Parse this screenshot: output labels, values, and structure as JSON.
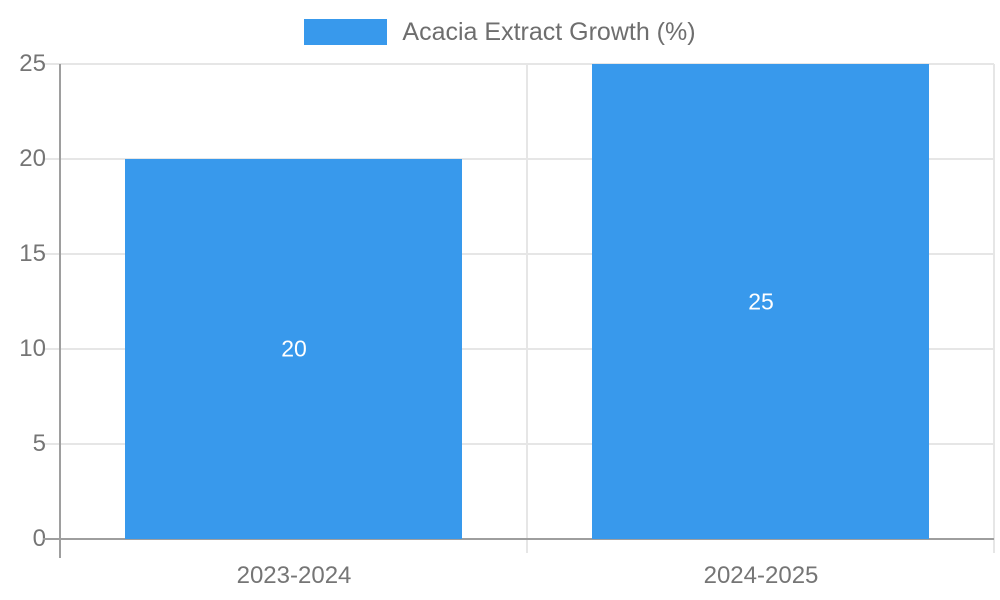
{
  "legend": {
    "label": "Acacia Extract Growth (%)",
    "swatch_color": "#3899ec"
  },
  "chart_data": {
    "type": "bar",
    "title": "",
    "categories": [
      "2023-2024",
      "2024-2025"
    ],
    "series": [
      {
        "name": "Acacia Extract Growth (%)",
        "values": [
          20,
          25
        ],
        "color": "#3899ec"
      }
    ],
    "data_labels": [
      "20",
      "25"
    ],
    "yticks": [
      "0",
      "5",
      "10",
      "15",
      "20",
      "25"
    ],
    "ytick_values": [
      0,
      5,
      10,
      15,
      20,
      25
    ],
    "ylim": [
      0,
      25
    ],
    "xlabel": "",
    "ylabel": "",
    "grid": "on",
    "legend_position": "top"
  },
  "colors": {
    "bar": "#3899ec",
    "bar_label_text": "#ffffff",
    "grid_line": "#e6e6e6",
    "axis_line": "#9e9e9e",
    "tick_text": "#757575",
    "legend_text": "#6e6e6e",
    "background": "#ffffff"
  }
}
